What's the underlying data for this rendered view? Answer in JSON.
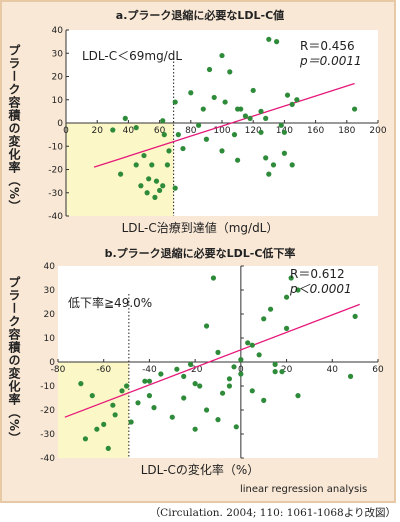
{
  "colors": {
    "background": "#f9e8d6",
    "frame_border": "#e8c9a6",
    "plot_area": "#ffffff",
    "highlight": "#fbf7c6",
    "point": "#2e8b3a",
    "regression_line": "#e6197b",
    "text": "#222222"
  },
  "citation": "（Circulation. 2004; 110: 1061-1068より改図）",
  "chart_data": [
    {
      "type": "scatter",
      "title": "a.プラーク退縮に必要なLDL-C値",
      "ylabel": "プラーク容積の変化率（%）",
      "xlabel": "LDL-C治療到達値（mg/dL）",
      "xlim": [
        0,
        200
      ],
      "ylim": [
        -40,
        40
      ],
      "xticks": [
        "0",
        "20",
        "40",
        "60",
        "80",
        "100",
        "120",
        "140",
        "160",
        "180",
        "200"
      ],
      "yticks": [
        "40",
        "30",
        "20",
        "10",
        "0",
        "-10",
        "-20",
        "-30",
        "-40"
      ],
      "threshold_x": 69,
      "threshold_label": "LDL-C＜69mg/dL",
      "stat_r": "R＝0.456",
      "stat_p": "p＝0.0011",
      "regression": {
        "x1": 18,
        "y1": -19,
        "x2": 185,
        "y2": 17
      },
      "x": [
        38,
        45,
        62,
        70,
        72,
        80,
        85,
        88,
        92,
        95,
        100,
        102,
        105,
        108,
        110,
        112,
        118,
        120,
        125,
        128,
        130,
        135,
        138,
        140,
        142,
        145,
        148,
        185,
        30,
        35,
        45,
        48,
        50,
        52,
        53,
        55,
        57,
        58,
        60,
        62,
        63,
        65,
        66,
        70,
        75,
        90,
        100,
        110,
        115,
        125,
        128,
        130,
        133,
        140,
        145
      ],
      "y": [
        2,
        -2,
        1,
        9,
        -5,
        13,
        -1,
        6,
        23,
        11,
        29,
        9,
        22,
        -5,
        6,
        6,
        2,
        14,
        5,
        2,
        36,
        35,
        -1,
        -4,
        12,
        8,
        10,
        6,
        -3,
        -22,
        -18,
        -27,
        -14,
        -30,
        -24,
        -18,
        -32,
        -25,
        -29,
        -27,
        -5,
        -18,
        -12,
        -28,
        -11,
        -7,
        -12,
        -16,
        3,
        -4,
        -15,
        -22,
        -18,
        -13,
        -18
      ]
    },
    {
      "type": "scatter",
      "title": "b.プラーク退縮に必要なLDL-C低下率",
      "ylabel": "プラーク容積の変化率（%）",
      "xlabel": "LDL-Cの変化率（%）",
      "xlim": [
        -80,
        60
      ],
      "ylim": [
        -40,
        40
      ],
      "xticks": [
        "-80",
        "-60",
        "-40",
        "-20",
        "0",
        "20",
        "40",
        "60"
      ],
      "yticks": [
        "40",
        "30",
        "20",
        "10",
        "0",
        "-10",
        "-20",
        "-30",
        "-40"
      ],
      "threshold_x": -49,
      "threshold_label": "低下率≧49.0%",
      "stat_r": "R＝0.612",
      "stat_p": "p＜0.0001",
      "regression": {
        "x1": -77,
        "y1": -23,
        "x2": 52,
        "y2": 24
      },
      "note": "linear regression analysis",
      "x": [
        -70,
        -68,
        -65,
        -63,
        -60,
        -58,
        -56,
        -52,
        -48,
        -42,
        -40,
        -38,
        -35,
        -30,
        -28,
        -25,
        -22,
        -20,
        -18,
        -15,
        -12,
        -10,
        -8,
        -5,
        -3,
        -2,
        0,
        3,
        5,
        8,
        10,
        13,
        15,
        18,
        20,
        22,
        25,
        48,
        50,
        -55,
        -50,
        -45,
        -40,
        -25,
        -20,
        -15,
        -10,
        -5,
        0,
        5,
        10,
        15,
        20,
        25
      ],
      "y": [
        -9,
        -32,
        -14,
        -28,
        -26,
        -36,
        -18,
        -12,
        -25,
        -8,
        -14,
        -19,
        -5,
        -23,
        -3,
        -6,
        -1,
        -9,
        -10,
        15,
        35,
        4,
        -13,
        -10,
        -2,
        -27,
        1,
        8,
        7,
        3,
        18,
        22,
        -1,
        -4,
        27,
        35,
        30,
        -6,
        19,
        -22,
        -10,
        -17,
        -8,
        -15,
        -28,
        -20,
        -24,
        -7,
        -5,
        -12,
        -16,
        -4,
        14,
        -14
      ]
    }
  ]
}
